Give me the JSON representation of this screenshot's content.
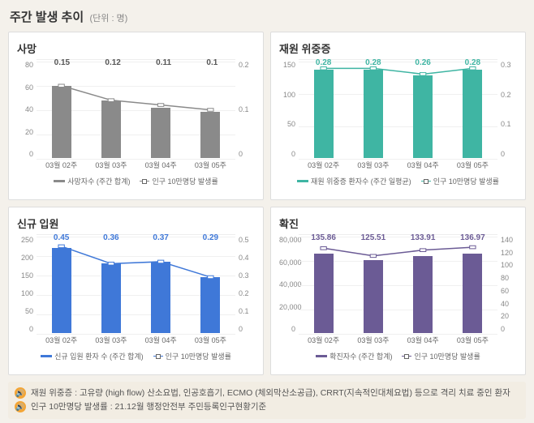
{
  "header": {
    "title": "주간 발생 추이",
    "unit": "(단위 : 명)"
  },
  "categories": [
    "03월 02주",
    "03월 03주",
    "03월 04주",
    "03월 05주"
  ],
  "charts": [
    {
      "title": "사망",
      "bar_color": "#8a8a8a",
      "line_color": "#8a8a8a",
      "value_color": "#555",
      "left_ticks": [
        "80",
        "60",
        "40",
        "20",
        "0"
      ],
      "right_ticks": [
        "0.2",
        "0.1",
        "0"
      ],
      "bars_pct": [
        75,
        60,
        52,
        48
      ],
      "line_pct": [
        25,
        40,
        45,
        50
      ],
      "point_labels": [
        "0.15",
        "0.12",
        "0.11",
        "0.1"
      ],
      "legend_bar": "사망자수 (주간 합계)",
      "legend_line": "인구 10만명당 발생률"
    },
    {
      "title": "재원 위중증",
      "bar_color": "#3fb5a3",
      "line_color": "#3fb5a3",
      "value_color": "#3fb5a3",
      "left_ticks": [
        "150",
        "100",
        "50",
        "0"
      ],
      "right_ticks": [
        "0.3",
        "0.2",
        "0.1",
        "0"
      ],
      "bars_pct": [
        92,
        92,
        86,
        92
      ],
      "line_pct": [
        7,
        7,
        13,
        7
      ],
      "point_labels": [
        "0.28",
        "0.28",
        "0.26",
        "0.28"
      ],
      "legend_bar": "재원 위중증 환자수 (주간 일평균)",
      "legend_line": "인구 10만명당 발생률"
    },
    {
      "title": "신규 입원",
      "bar_color": "#3f78d8",
      "line_color": "#3f78d8",
      "value_color": "#3f78d8",
      "left_ticks": [
        "250",
        "200",
        "150",
        "100",
        "50",
        "0"
      ],
      "right_ticks": [
        "0.5",
        "0.4",
        "0.3",
        "0.2",
        "0.1",
        "0"
      ],
      "bars_pct": [
        88,
        72,
        74,
        58
      ],
      "line_pct": [
        10,
        28,
        26,
        42
      ],
      "point_labels": [
        "0.45",
        "0.36",
        "0.37",
        "0.29"
      ],
      "legend_bar": "신규 입원 환자 수 (주간 합계)",
      "legend_line": "인구 10만명당 발생률"
    },
    {
      "title": "확진",
      "bar_color": "#6b5b95",
      "line_color": "#6b5b95",
      "value_color": "#6b5b95",
      "left_ticks": [
        "80,000",
        "60,000",
        "40,000",
        "20,000",
        "0"
      ],
      "right_ticks": [
        "140",
        "120",
        "100",
        "80",
        "60",
        "40",
        "20",
        "0"
      ],
      "bars_pct": [
        82,
        76,
        80,
        82
      ],
      "line_pct": [
        12,
        20,
        14,
        11
      ],
      "point_labels": [
        "135.86",
        "125.51",
        "133.91",
        "136.97"
      ],
      "legend_bar": "확진자수 (주간 합계)",
      "legend_line": "인구 10만명당 발생률"
    }
  ],
  "notes": [
    "재원 위중증 : 고유량 (high flow) 산소요법, 인공호흡기, ECMO (체외막산소공급), CRRT(지속적인대체요법) 등으로 격리 치료 중인 환자",
    "인구 10만명당 발생률 : 21.12월 행정안전부 주민등록인구현황기준"
  ]
}
